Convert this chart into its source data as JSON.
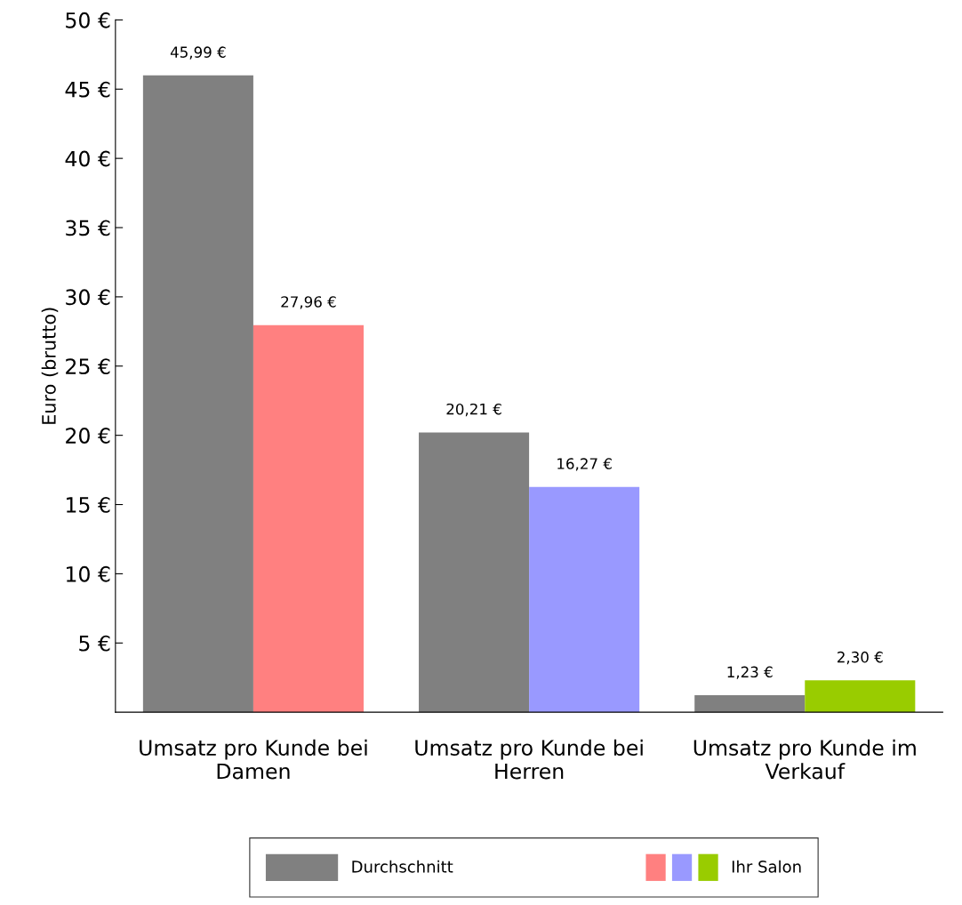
{
  "chart_data": {
    "type": "bar",
    "ylabel": "Euro (brutto)",
    "categories": [
      "Umsatz pro Kunde bei\nDamen",
      "Umsatz pro Kunde bei\nHerren",
      "Umsatz pro Kunde im\nVerkauf"
    ],
    "series": [
      {
        "name": "Durchschnitt",
        "color": "#808080",
        "values": [
          45.99,
          20.21,
          1.23
        ],
        "value_labels": [
          "45,99 €",
          "20,21 €",
          "1,23 €"
        ]
      },
      {
        "name": "Ihr Salon",
        "colors": [
          "#ff8080",
          "#9999ff",
          "#99cc00"
        ],
        "values": [
          27.96,
          16.27,
          2.3
        ],
        "value_labels": [
          "27,96 €",
          "16,27 €",
          "2,30 €"
        ]
      }
    ],
    "ylim": [
      0,
      50
    ],
    "yticks": [
      {
        "value": 5,
        "label": "5 €"
      },
      {
        "value": 10,
        "label": "10 €"
      },
      {
        "value": 15,
        "label": "15 €"
      },
      {
        "value": 20,
        "label": "20 €"
      },
      {
        "value": 25,
        "label": "25 €"
      },
      {
        "value": 30,
        "label": "30 €"
      },
      {
        "value": 35,
        "label": "35 €"
      },
      {
        "value": 40,
        "label": "40 €"
      },
      {
        "value": 45,
        "label": "45 €"
      },
      {
        "value": 50,
        "label": "50 €"
      }
    ],
    "grid": false,
    "legend": "bottom"
  }
}
